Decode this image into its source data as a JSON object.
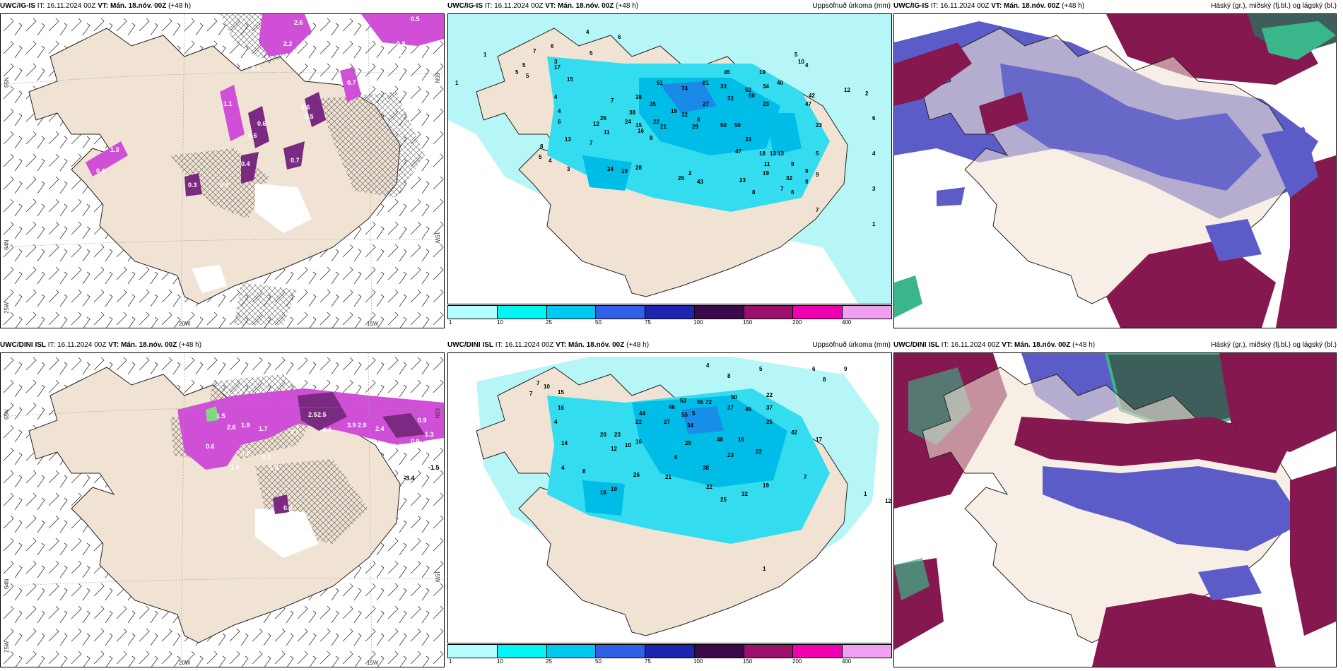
{
  "panels": [
    {
      "model": "UWC/IG-IS",
      "it": "16.11.2024 00Z",
      "vt": "Mán. 18.nóv. 00Z",
      "lead": "(+48 h)",
      "right_title": "",
      "grid_labels": {
        "lat_left_top": "65N",
        "lat_left_mid": "64N",
        "lat_left_bot": "25W",
        "lat_right_top": "65N",
        "lat_right_mid": "15W",
        "lon_a": "20W",
        "lon_b": "15W"
      },
      "values": [
        "2.6",
        "2.2",
        "0.5",
        "0.6",
        "0.5",
        "0.6",
        "1.3",
        "0.4",
        "0.7",
        "0.6",
        "0.8",
        "0.4",
        "0.3",
        "0.7",
        "0.4",
        "1.1",
        "0.6",
        "0.5"
      ]
    },
    {
      "model": "UWC/IG-IS",
      "it": "16.11.2024 00Z",
      "vt": "Mán. 18.nóv. 00Z",
      "lead": "(+48 h)",
      "right_title": "Uppsöfnuð úrkoma (mm)",
      "values": [
        "6",
        "7",
        "5",
        "5",
        "1",
        "1",
        "5",
        "3",
        "4",
        "15",
        "17",
        "5",
        "4",
        "6",
        "45",
        "19",
        "5",
        "10",
        "4",
        "51",
        "81",
        "74",
        "33",
        "52",
        "40",
        "34",
        "38",
        "35",
        "23",
        "50",
        "27",
        "32",
        "47",
        "23",
        "19",
        "8",
        "32",
        "50",
        "29",
        "50",
        "22",
        "21",
        "15",
        "24",
        "16",
        "8",
        "12",
        "11",
        "38",
        "7",
        "4",
        "6",
        "26",
        "33",
        "18",
        "7",
        "47",
        "11",
        "13",
        "13",
        "13",
        "8",
        "5",
        "4",
        "2",
        "28",
        "24",
        "19",
        "26",
        "3",
        "23",
        "43",
        "19",
        "32",
        "5",
        "9",
        "8",
        "7",
        "6",
        "2",
        "3",
        "6",
        "4",
        "1",
        "9",
        "9",
        "9",
        "12",
        "42",
        "7"
      ]
    },
    {
      "model": "UWC/IG-IS",
      "it": "16.11.2024 00Z",
      "vt": "Mán. 18.nóv. 00Z",
      "lead": "(+48 h)",
      "right_title": "Háský (gr.), miðský (fj.bl.) og lágský (bl.)"
    },
    {
      "model": "UWC/DINI ISL",
      "it": "16.11.2024 00Z",
      "vt": "Mán. 18.nóv. 00Z",
      "lead": "(+48 h)",
      "right_title": "",
      "grid_labels": {
        "lat_left_top": "65N",
        "lat_left_mid": "64N",
        "lat_left_bot": "25W",
        "lat_right_top": "65N",
        "lat_right_mid": "15W",
        "lon_a": "20W",
        "lon_b": "15W"
      },
      "values": [
        "2.5",
        "2.5",
        "1.5",
        "2.6",
        "1.9",
        "1.7",
        "2.1",
        "4.4",
        "3.9",
        "2.9",
        "2.4",
        "3.3",
        "0.9",
        "1.3",
        "0.6",
        "1.4",
        "0.8",
        "2.3",
        "1.3",
        "0.4",
        "-3.4",
        "-1.5",
        "0.9"
      ]
    },
    {
      "model": "UWC/DINI ISL",
      "it": "16.11.2024 00Z",
      "vt": "Mán. 18.nóv. 00Z",
      "lead": "(+48 h)",
      "right_title": "Uppsöfnuð úrkoma (mm)",
      "values": [
        "4",
        "8",
        "5",
        "6",
        "8",
        "9",
        "7",
        "10",
        "15",
        "16",
        "7",
        "4",
        "50",
        "56",
        "72",
        "37",
        "46",
        "22",
        "46",
        "53",
        "5",
        "55",
        "34",
        "37",
        "25",
        "27",
        "22",
        "44",
        "20",
        "23",
        "14",
        "16",
        "10",
        "12",
        "25",
        "48",
        "16",
        "23",
        "22",
        "42",
        "6",
        "21",
        "38",
        "17",
        "22",
        "4",
        "8",
        "19",
        "7",
        "12",
        "1",
        "1",
        "16",
        "19",
        "26",
        "25",
        "32"
      ]
    },
    {
      "model": "UWC/DINI ISL",
      "it": "16.11.2024 00Z",
      "vt": "Mán. 18.nóv. 00Z",
      "lead": "(+48 h)",
      "right_title": "Háský (gr.), miðský (fj.bl.) og lágský (bl.)"
    }
  ],
  "precip_legend": {
    "labels": [
      "1",
      "10",
      "25",
      "50",
      "75",
      "100",
      "150",
      "200",
      "400"
    ],
    "colors": [
      "#b3ffff",
      "#00f5f5",
      "#00c8f0",
      "#3060e8",
      "#1c24b0",
      "#3c0a4c",
      "#9a106c",
      "#f000b0",
      "#f0a0f0"
    ]
  },
  "colors": {
    "land": "#f1e3d4",
    "sea_precip": "#b6f6f6",
    "mid_precip": "#34dcef",
    "dark_precip": "#00bde8",
    "snow": "#cf4fd6",
    "snow_dark": "#7a2a80",
    "cloud_high": "#3d5e5a",
    "cloud_mid": "#5b5cc8",
    "cloud_low": "#861850",
    "cloud_green": "#39b78a"
  }
}
